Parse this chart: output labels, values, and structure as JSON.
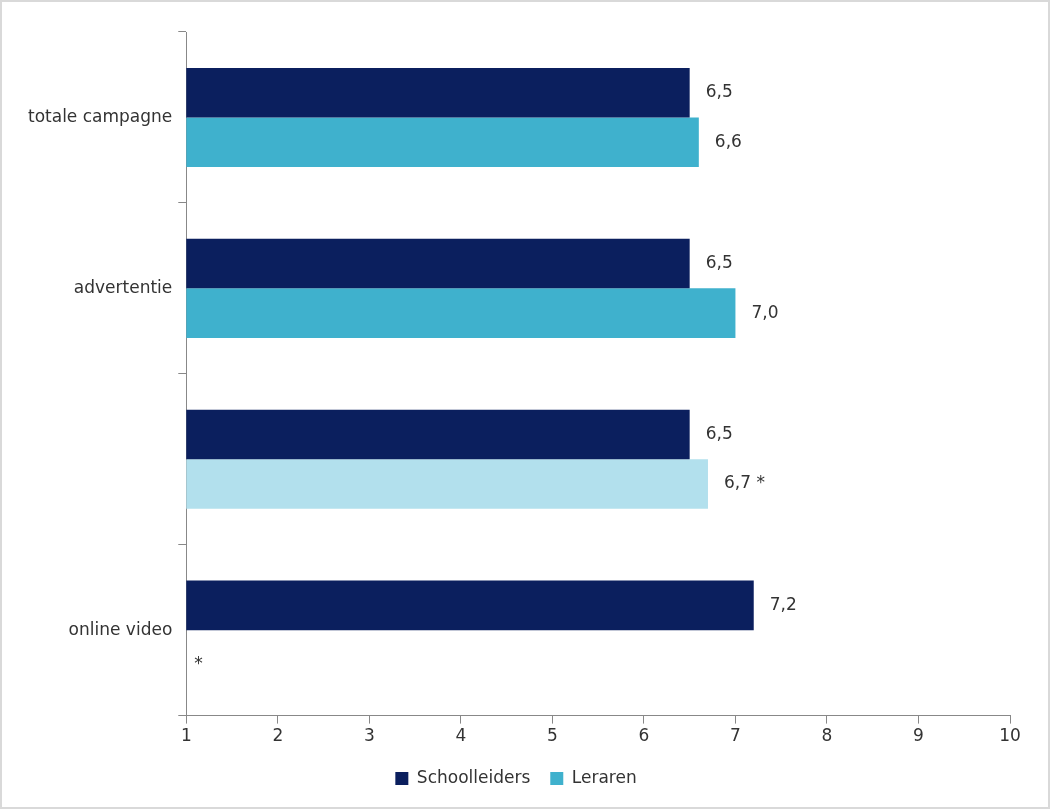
{
  "chart_data": {
    "type": "bar",
    "orientation": "horizontal",
    "categories": [
      "totale campagne",
      "advertentie",
      null,
      "online video"
    ],
    "series": [
      {
        "name": "Schoolleiders",
        "color": "#0b1f5e",
        "values": [
          6.5,
          6.5,
          6.5,
          7.2
        ],
        "value_labels": [
          "6,5",
          "6,5",
          "6,5",
          "7,2"
        ]
      },
      {
        "name": "Leraren",
        "color": "#3fb1cd",
        "colors": [
          "#3fb1cd",
          "#3fb1cd",
          "#b2e0ed",
          "#3fb1cd"
        ],
        "values": [
          6.6,
          7.0,
          6.7,
          null
        ],
        "value_labels": [
          "6,6",
          "7,0",
          "6,7 *",
          "*"
        ]
      }
    ],
    "xlim": [
      1,
      10
    ],
    "xticks": [
      1,
      2,
      3,
      4,
      5,
      6,
      7,
      8,
      9,
      10
    ],
    "grid": false,
    "legend": "bottom"
  }
}
